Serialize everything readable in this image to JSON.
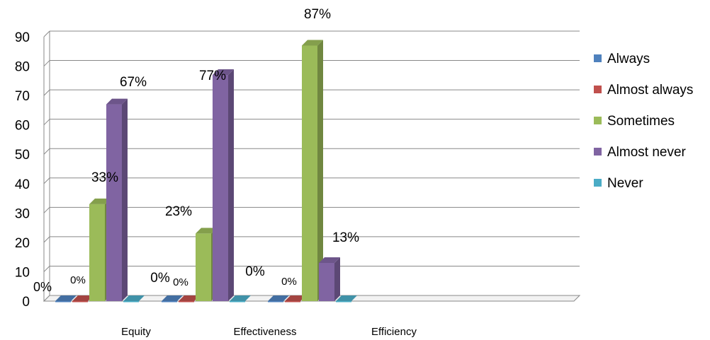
{
  "chart_data": {
    "type": "bar",
    "style": "3d-clustered-column",
    "categories": [
      "Equity",
      "Effectiveness",
      "Efficiency"
    ],
    "series": [
      {
        "name": "Always",
        "color": "#4F81BD",
        "values": [
          0,
          0,
          0
        ],
        "labels": [
          "0%",
          "0%",
          "0%"
        ]
      },
      {
        "name": "Almost always",
        "color": "#C0504D",
        "values": [
          0,
          0,
          0
        ],
        "labels": [
          "0%",
          "0%",
          ""
        ]
      },
      {
        "name": "Sometimes",
        "color": "#9BBB59",
        "values": [
          33,
          23,
          87
        ],
        "labels": [
          "33%",
          "23%",
          "87%"
        ]
      },
      {
        "name": "Almost never",
        "color": "#8064A2",
        "values": [
          67,
          77,
          13
        ],
        "labels": [
          "67%",
          "77%",
          "13%"
        ]
      },
      {
        "name": "Never",
        "color": "#4BACC6",
        "values": [
          0,
          0,
          0
        ],
        "labels": [
          "",
          "0%",
          ""
        ]
      }
    ],
    "ylim": [
      0,
      90
    ],
    "yticks": [
      0,
      10,
      20,
      30,
      40,
      50,
      60,
      70,
      80,
      90
    ],
    "grid": true,
    "legend": "right",
    "title": "",
    "xlabel": "",
    "ylabel": ""
  }
}
